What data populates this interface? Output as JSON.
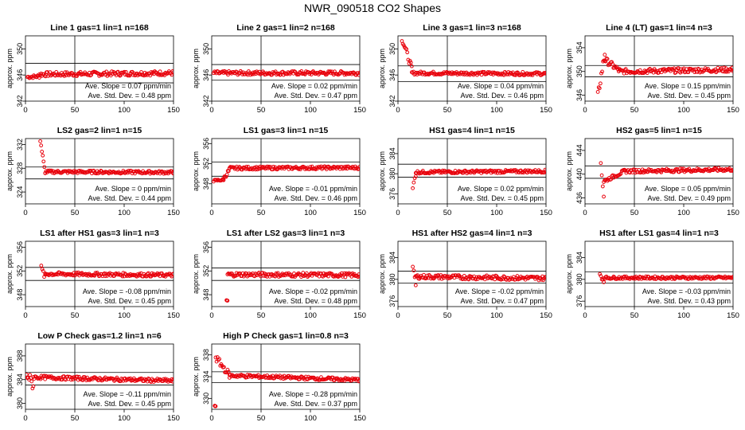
{
  "title": "NWR_090518  CO2 Shapes",
  "axis_text": {
    "ylabel": "approx. ppm",
    "slope_label": "Ave. Slope =",
    "slope_unit": "ppm/min",
    "std_label": "Ave. Std. Dev. =",
    "std_unit": "ppm"
  },
  "colors": {
    "points": "#e8000b",
    "axes": "#000000"
  },
  "chart_data": [
    {
      "type": "scatter",
      "title": "Line 1 gas=1 lin=1 n=168",
      "xlim": [
        0,
        150
      ],
      "ylim": [
        342,
        352
      ],
      "yticks": [
        342,
        346,
        350
      ],
      "ref_lines": [
        344.8,
        347.8
      ],
      "slope": "0.07",
      "std": "0.48",
      "segments": [
        {
          "x_from": 2,
          "x_to": 14,
          "y_from": 345.7,
          "y_to": 345.8,
          "noise": 0.25
        },
        {
          "x_from": 14,
          "x_to": 150,
          "y_from": 346.1,
          "y_to": 346.3,
          "noise": 0.35
        }
      ]
    },
    {
      "type": "scatter",
      "title": "Line 2 gas=1 lin=2 n=168",
      "xlim": [
        0,
        150
      ],
      "ylim": [
        342,
        352
      ],
      "yticks": [
        342,
        346,
        350
      ],
      "ref_lines": [
        345.2,
        347.6
      ],
      "slope": "0.02",
      "std": "0.47",
      "segments": [
        {
          "x_from": 2,
          "x_to": 150,
          "y_from": 346.3,
          "y_to": 346.3,
          "noise": 0.3
        }
      ]
    },
    {
      "type": "scatter",
      "title": "Line 3 gas=1 lin=3 n=168",
      "xlim": [
        0,
        150
      ],
      "ylim": [
        342,
        352
      ],
      "yticks": [
        342,
        346,
        350
      ],
      "ref_lines": [
        345.0,
        347.4
      ],
      "slope": "0.04",
      "std": "0.46",
      "segments": [
        {
          "x_from": 4,
          "x_to": 14,
          "y_from": 351.6,
          "y_to": 347.0,
          "noise": 0.5
        },
        {
          "x_from": 14,
          "x_to": 150,
          "y_from": 346.3,
          "y_to": 346.2,
          "noise": 0.25
        }
      ]
    },
    {
      "type": "scatter",
      "title": "Line 4 (LT) gas=1 lin=4 n=3",
      "xlim": [
        0,
        150
      ],
      "ylim": [
        345,
        356
      ],
      "yticks": [
        346,
        350,
        354
      ],
      "ref_lines": [
        349.1,
        351.0
      ],
      "slope": "0.15",
      "std": "0.45",
      "segments": [
        {
          "x_from": 13,
          "x_to": 20,
          "y_from": 345.8,
          "y_to": 353.0,
          "noise": 0.8
        },
        {
          "x_from": 20,
          "x_to": 35,
          "y_from": 352.0,
          "y_to": 350.1,
          "noise": 0.5
        },
        {
          "x_from": 35,
          "x_to": 150,
          "y_from": 350.0,
          "y_to": 350.3,
          "noise": 0.4
        }
      ]
    },
    {
      "type": "scatter",
      "title": "LS2 gas=2 lin=1 n=15",
      "xlim": [
        0,
        150
      ],
      "ylim": [
        322,
        333
      ],
      "yticks": [
        324,
        328,
        332
      ],
      "ref_lines": [
        326.2,
        328.2
      ],
      "slope": "0",
      "std": "0.44",
      "segments": [
        {
          "x_from": 15,
          "x_to": 20,
          "y_from": 332.8,
          "y_to": 327.0,
          "noise": 0.4
        },
        {
          "x_from": 20,
          "x_to": 150,
          "y_from": 327.4,
          "y_to": 327.3,
          "noise": 0.25
        }
      ]
    },
    {
      "type": "scatter",
      "title": "LS1 gas=3 lin=1 n=15",
      "xlim": [
        0,
        150
      ],
      "ylim": [
        344,
        357
      ],
      "yticks": [
        348,
        352,
        356
      ],
      "ref_lines": [
        349.5,
        352.3
      ],
      "slope": "-0.01",
      "std": "0.46",
      "segments": [
        {
          "x_from": 2,
          "x_to": 12,
          "y_from": 348.6,
          "y_to": 348.8,
          "noise": 0.2
        },
        {
          "x_from": 12,
          "x_to": 18,
          "y_from": 349.0,
          "y_to": 350.8,
          "noise": 0.4
        },
        {
          "x_from": 18,
          "x_to": 150,
          "y_from": 351.1,
          "y_to": 351.2,
          "noise": 0.3
        }
      ]
    },
    {
      "type": "scatter",
      "title": "HS1 gas=4 lin=1 n=15",
      "xlim": [
        0,
        150
      ],
      "ylim": [
        374,
        387
      ],
      "yticks": [
        376,
        380,
        384
      ],
      "ref_lines": [
        379.3,
        381.9
      ],
      "slope": "0.02",
      "std": "0.45",
      "segments": [
        {
          "x_from": 15,
          "x_to": 18,
          "y_from": 377.0,
          "y_to": 380.0,
          "noise": 0.6
        },
        {
          "x_from": 18,
          "x_to": 150,
          "y_from": 380.3,
          "y_to": 380.5,
          "noise": 0.3
        }
      ]
    },
    {
      "type": "scatter",
      "title": "HS2 gas=5 lin=1 n=15",
      "xlim": [
        0,
        150
      ],
      "ylim": [
        435,
        446
      ],
      "yticks": [
        436,
        440,
        444
      ],
      "ref_lines": [
        439.3,
        441.4
      ],
      "slope": "0.05",
      "std": "0.49",
      "segments": [
        {
          "x_from": 16,
          "x_to": 19,
          "y_from": 442.0,
          "y_to": 436.3,
          "noise": 0.5
        },
        {
          "x_from": 19,
          "x_to": 40,
          "y_from": 438.8,
          "y_to": 440.5,
          "noise": 0.3
        },
        {
          "x_from": 40,
          "x_to": 150,
          "y_from": 440.5,
          "y_to": 440.8,
          "noise": 0.3
        }
      ]
    },
    {
      "type": "scatter",
      "title": "LS1 after HS1 gas=3 lin=1 n=3",
      "xlim": [
        0,
        150
      ],
      "ylim": [
        346,
        357
      ],
      "yticks": [
        348,
        352,
        356
      ],
      "ref_lines": [
        350.4,
        352.6
      ],
      "slope": "-0.08",
      "std": "0.45",
      "segments": [
        {
          "x_from": 16,
          "x_to": 20,
          "y_from": 352.5,
          "y_to": 350.9,
          "noise": 0.5
        },
        {
          "x_from": 20,
          "x_to": 150,
          "y_from": 351.5,
          "y_to": 351.3,
          "noise": 0.3
        }
      ]
    },
    {
      "type": "scatter",
      "title": "LS1 after LS2 gas=3 lin=1 n=3",
      "xlim": [
        0,
        150
      ],
      "ylim": [
        346,
        357
      ],
      "yticks": [
        348,
        352,
        356
      ],
      "ref_lines": [
        350.4,
        352.5
      ],
      "slope": "-0.02",
      "std": "0.48",
      "segments": [
        {
          "x_from": 15,
          "x_to": 16,
          "y_from": 347.0,
          "y_to": 347.0,
          "noise": 0.1
        },
        {
          "x_from": 16,
          "x_to": 150,
          "y_from": 351.4,
          "y_to": 351.3,
          "noise": 0.35
        }
      ]
    },
    {
      "type": "scatter",
      "title": "HS1 after HS2 gas=4 lin=1 n=3",
      "xlim": [
        0,
        150
      ],
      "ylim": [
        375,
        387
      ],
      "yticks": [
        376,
        380,
        384
      ],
      "ref_lines": [
        379.3,
        381.5
      ],
      "slope": "-0.02",
      "std": "0.47",
      "segments": [
        {
          "x_from": 15,
          "x_to": 18,
          "y_from": 382.2,
          "y_to": 379.0,
          "noise": 0.5
        },
        {
          "x_from": 18,
          "x_to": 150,
          "y_from": 380.5,
          "y_to": 380.2,
          "noise": 0.4
        }
      ]
    },
    {
      "type": "scatter",
      "title": "HS1 after LS1 gas=4 lin=1 n=3",
      "xlim": [
        0,
        150
      ],
      "ylim": [
        375,
        387
      ],
      "yticks": [
        376,
        380,
        384
      ],
      "ref_lines": [
        379.3,
        381.4
      ],
      "slope": "-0.03",
      "std": "0.43",
      "segments": [
        {
          "x_from": 15,
          "x_to": 19,
          "y_from": 381.0,
          "y_to": 379.6,
          "noise": 0.3
        },
        {
          "x_from": 19,
          "x_to": 150,
          "y_from": 380.3,
          "y_to": 380.3,
          "noise": 0.25
        }
      ]
    },
    {
      "type": "scatter",
      "title": "Low P Check gas=1.2 lin=1 n=6",
      "xlim": [
        0,
        150
      ],
      "ylim": [
        379,
        390
      ],
      "yticks": [
        380,
        384,
        388
      ],
      "ref_lines": [
        383.1,
        385.2
      ],
      "slope": "-0.11",
      "std": "0.45",
      "segments": [
        {
          "x_from": 1,
          "x_to": 8,
          "y_from": 385.0,
          "y_to": 383.0,
          "noise": 0.9
        },
        {
          "x_from": 8,
          "x_to": 150,
          "y_from": 384.4,
          "y_to": 383.8,
          "noise": 0.3
        }
      ]
    },
    {
      "type": "scatter",
      "title": "High P Check gas=1 lin=0.8 n=3",
      "xlim": [
        0,
        150
      ],
      "ylim": [
        328,
        340
      ],
      "yticks": [
        330,
        334,
        338
      ],
      "ref_lines": [
        332.9,
        334.9
      ],
      "slope": "-0.28",
      "std": "0.37",
      "segments": [
        {
          "x_from": 3,
          "x_to": 4,
          "y_from": 328.6,
          "y_to": 328.6,
          "noise": 0.1
        },
        {
          "x_from": 4,
          "x_to": 18,
          "y_from": 337.5,
          "y_to": 334.3,
          "noise": 0.6
        },
        {
          "x_from": 18,
          "x_to": 150,
          "y_from": 334.2,
          "y_to": 333.4,
          "noise": 0.3
        }
      ]
    }
  ]
}
